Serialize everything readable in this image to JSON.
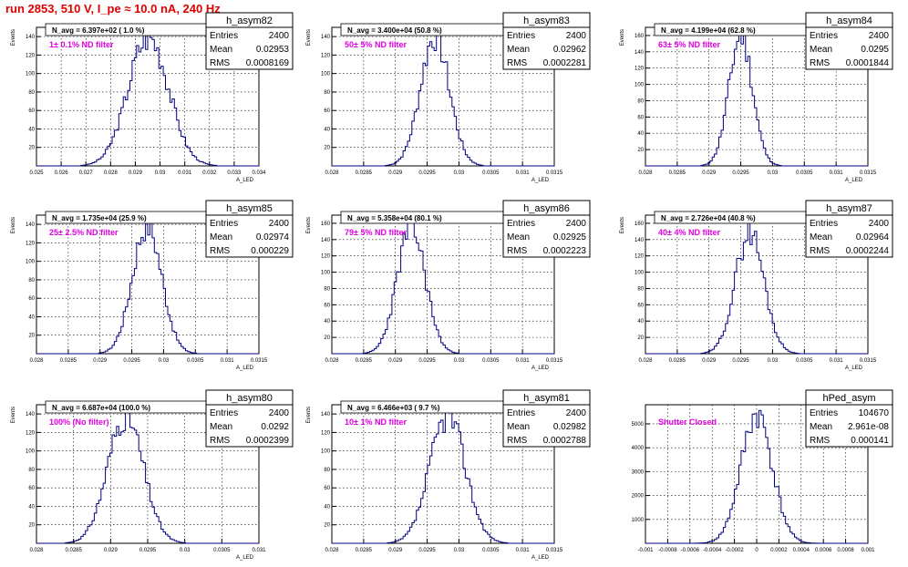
{
  "page": {
    "run_title": "run 2853,   510 V, I_pe ≈ 10.0 nA, 240 Hz"
  },
  "colors": {
    "title": "#e00000",
    "histogram_line": "#000080",
    "annotation": "#e000e0",
    "grid": "#000000"
  },
  "chart_data": [
    {
      "type": "histogram",
      "name": "h_asym82",
      "entries": "2400",
      "mean": "0.02953",
      "rms": "0.0008169",
      "navg": "N_avg = 6.397e+02 ( 1.0 %)",
      "annotation": "1± 0.1% ND filter",
      "xlabel": "A_LED",
      "ylabel": "Events",
      "xlim": [
        0.025,
        0.034
      ],
      "ylim": [
        0,
        150
      ],
      "xticks": [
        "0.025",
        "0.026",
        "0.027",
        "0.028",
        "0.029",
        "0.03",
        "0.031",
        "0.032",
        "0.033",
        "0.034"
      ],
      "xtick_values": [
        0.025,
        0.026,
        0.027,
        0.028,
        0.029,
        0.03,
        0.031,
        0.032,
        0.033,
        0.034
      ],
      "yticks": [
        "20",
        "40",
        "60",
        "80",
        "100",
        "120",
        "140"
      ],
      "ytick_values": [
        20,
        40,
        60,
        80,
        100,
        120,
        140
      ],
      "mu": 0.02953,
      "sigma": 0.0008169,
      "peak": 140,
      "seed": 3
    },
    {
      "type": "histogram",
      "name": "h_asym83",
      "entries": "2400",
      "mean": "0.02962",
      "rms": "0.0002281",
      "navg": "N_avg = 3.400e+04 (50.8 %)",
      "annotation": "50± 5% ND filter",
      "xlabel": "A_LED",
      "ylabel": "Events",
      "xlim": [
        0.028,
        0.0315
      ],
      "ylim": [
        0,
        150
      ],
      "xticks": [
        "0.028",
        "0.0285",
        "0.029",
        "0.0295",
        "0.03",
        "0.0305",
        "0.031",
        "0.0315"
      ],
      "xtick_values": [
        0.028,
        0.0285,
        0.029,
        0.0295,
        0.03,
        0.0305,
        0.031,
        0.0315
      ],
      "yticks": [
        "20",
        "40",
        "60",
        "80",
        "100",
        "120",
        "140"
      ],
      "ytick_values": [
        20,
        40,
        60,
        80,
        100,
        120,
        140
      ],
      "mu": 0.02962,
      "sigma": 0.0002281,
      "peak": 140,
      "seed": 7
    },
    {
      "type": "histogram",
      "name": "h_asym84",
      "entries": "2400",
      "mean": "0.0295",
      "rms": "0.0001844",
      "navg": "N_avg = 4.199e+04 (62.8 %)",
      "annotation": "63± 5% ND filter",
      "xlabel": "A_LED",
      "ylabel": "Events",
      "xlim": [
        0.028,
        0.0315
      ],
      "ylim": [
        0,
        170
      ],
      "xticks": [
        "0.028",
        "0.0285",
        "0.029",
        "0.0295",
        "0.03",
        "0.0305",
        "0.031",
        "0.0315"
      ],
      "xtick_values": [
        0.028,
        0.0285,
        0.029,
        0.0295,
        0.03,
        0.0305,
        0.031,
        0.0315
      ],
      "yticks": [
        "20",
        "40",
        "60",
        "80",
        "100",
        "120",
        "140",
        "160"
      ],
      "ytick_values": [
        20,
        40,
        60,
        80,
        100,
        120,
        140,
        160
      ],
      "mu": 0.0295,
      "sigma": 0.0001844,
      "peak": 160,
      "seed": 11
    },
    {
      "type": "histogram",
      "name": "h_asym85",
      "entries": "2400",
      "mean": "0.02974",
      "rms": "0.000229",
      "navg": "N_avg = 1.735e+04 (25.9 %)",
      "annotation": "25± 2.5% ND filter",
      "xlabel": "A_LED",
      "ylabel": "Events",
      "xlim": [
        0.028,
        0.0315
      ],
      "ylim": [
        0,
        150
      ],
      "xticks": [
        "0.028",
        "0.0285",
        "0.029",
        "0.0295",
        "0.03",
        "0.0305",
        "0.031",
        "0.0315"
      ],
      "xtick_values": [
        0.028,
        0.0285,
        0.029,
        0.0295,
        0.03,
        0.0305,
        0.031,
        0.0315
      ],
      "yticks": [
        "20",
        "40",
        "60",
        "80",
        "100",
        "120",
        "140"
      ],
      "ytick_values": [
        20,
        40,
        60,
        80,
        100,
        120,
        140
      ],
      "mu": 0.02974,
      "sigma": 0.000229,
      "peak": 140,
      "seed": 17
    },
    {
      "type": "histogram",
      "name": "h_asym86",
      "entries": "2400",
      "mean": "0.02925",
      "rms": "0.0002223",
      "navg": "N_avg = 5.358e+04 (80.1 %)",
      "annotation": "79± 5% ND filter",
      "xlabel": "A_LED",
      "ylabel": "Events",
      "xlim": [
        0.028,
        0.0315
      ],
      "ylim": [
        0,
        170
      ],
      "xticks": [
        "0.028",
        "0.0285",
        "0.029",
        "0.0295",
        "0.03",
        "0.0305",
        "0.031",
        "0.0315"
      ],
      "xtick_values": [
        0.028,
        0.0285,
        0.029,
        0.0295,
        0.03,
        0.0305,
        0.031,
        0.0315
      ],
      "yticks": [
        "20",
        "40",
        "60",
        "80",
        "100",
        "120",
        "140",
        "160"
      ],
      "ytick_values": [
        20,
        40,
        60,
        80,
        100,
        120,
        140,
        160
      ],
      "mu": 0.02925,
      "sigma": 0.0002223,
      "peak": 155,
      "seed": 23
    },
    {
      "type": "histogram",
      "name": "h_asym87",
      "entries": "2400",
      "mean": "0.02964",
      "rms": "0.0002244",
      "navg": "N_avg = 2.726e+04 (40.8 %)",
      "annotation": "40± 4% ND filter",
      "xlabel": "A_LED",
      "ylabel": "Events",
      "xlim": [
        0.028,
        0.0315
      ],
      "ylim": [
        0,
        170
      ],
      "xticks": [
        "0.028",
        "0.0285",
        "0.029",
        "0.0295",
        "0.03",
        "0.0305",
        "0.031",
        "0.0315"
      ],
      "xtick_values": [
        0.028,
        0.0285,
        0.029,
        0.0295,
        0.03,
        0.0305,
        0.031,
        0.0315
      ],
      "yticks": [
        "20",
        "40",
        "60",
        "80",
        "100",
        "120",
        "140",
        "160"
      ],
      "ytick_values": [
        20,
        40,
        60,
        80,
        100,
        120,
        140,
        160
      ],
      "mu": 0.02964,
      "sigma": 0.0002244,
      "peak": 150,
      "seed": 29
    },
    {
      "type": "histogram",
      "name": "h_asym80",
      "entries": "2400",
      "mean": "0.0292",
      "rms": "0.0002399",
      "navg": "N_avg = 6.687e+04 (100.0 %)",
      "annotation": "100% (No filter)",
      "xlabel": "A_LED",
      "ylabel": "Events",
      "xlim": [
        0.028,
        0.031
      ],
      "ylim": [
        0,
        150
      ],
      "xticks": [
        "0.028",
        "0.0285",
        "0.029",
        "0.0295",
        "0.03",
        "0.0305",
        "0.031"
      ],
      "xtick_values": [
        0.028,
        0.0285,
        0.029,
        0.0295,
        0.03,
        0.0305,
        0.031
      ],
      "yticks": [
        "20",
        "40",
        "60",
        "80",
        "100",
        "120",
        "140"
      ],
      "ytick_values": [
        20,
        40,
        60,
        80,
        100,
        120,
        140
      ],
      "mu": 0.0292,
      "sigma": 0.0002399,
      "peak": 138,
      "seed": 31
    },
    {
      "type": "histogram",
      "name": "h_asym81",
      "entries": "2400",
      "mean": "0.02982",
      "rms": "0.0002788",
      "navg": "N_avg = 6.466e+03 ( 9.7 %)",
      "annotation": "10± 1% ND filter",
      "xlabel": "A_LED",
      "ylabel": "Events",
      "xlim": [
        0.028,
        0.0315
      ],
      "ylim": [
        0,
        150
      ],
      "xticks": [
        "0.028",
        "0.0285",
        "0.029",
        "0.0295",
        "0.03",
        "0.0305",
        "0.031",
        "0.0315"
      ],
      "xtick_values": [
        0.028,
        0.0285,
        0.029,
        0.0295,
        0.03,
        0.0305,
        0.031,
        0.0315
      ],
      "yticks": [
        "20",
        "40",
        "60",
        "80",
        "100",
        "120",
        "140"
      ],
      "ytick_values": [
        20,
        40,
        60,
        80,
        100,
        120,
        140
      ],
      "mu": 0.02982,
      "sigma": 0.0002788,
      "peak": 138,
      "seed": 37
    },
    {
      "type": "histogram",
      "name": "hPed_asym",
      "entries": "104670",
      "mean": "2.961e-08",
      "rms": "0.000141",
      "navg": "",
      "annotation": "Shutter Closed",
      "xlabel": "",
      "ylabel": "",
      "xlim": [
        -0.001,
        0.001
      ],
      "ylim": [
        0,
        5800
      ],
      "xticks": [
        "-0.001",
        "-0.0008",
        "-0.0006",
        "-0.0004",
        "-0.0002",
        "0",
        "0.0002",
        "0.0004",
        "0.0006",
        "0.0008",
        "0.001"
      ],
      "xtick_values": [
        -0.001,
        -0.0008,
        -0.0006,
        -0.0004,
        -0.0002,
        0,
        0.0002,
        0.0004,
        0.0006,
        0.0008,
        0.001
      ],
      "yticks": [
        "1000",
        "2000",
        "3000",
        "4000",
        "5000"
      ],
      "ytick_values": [
        1000,
        2000,
        3000,
        4000,
        5000
      ],
      "mu": 0.0,
      "sigma": 0.000141,
      "peak": 5400,
      "seed": 41
    }
  ]
}
